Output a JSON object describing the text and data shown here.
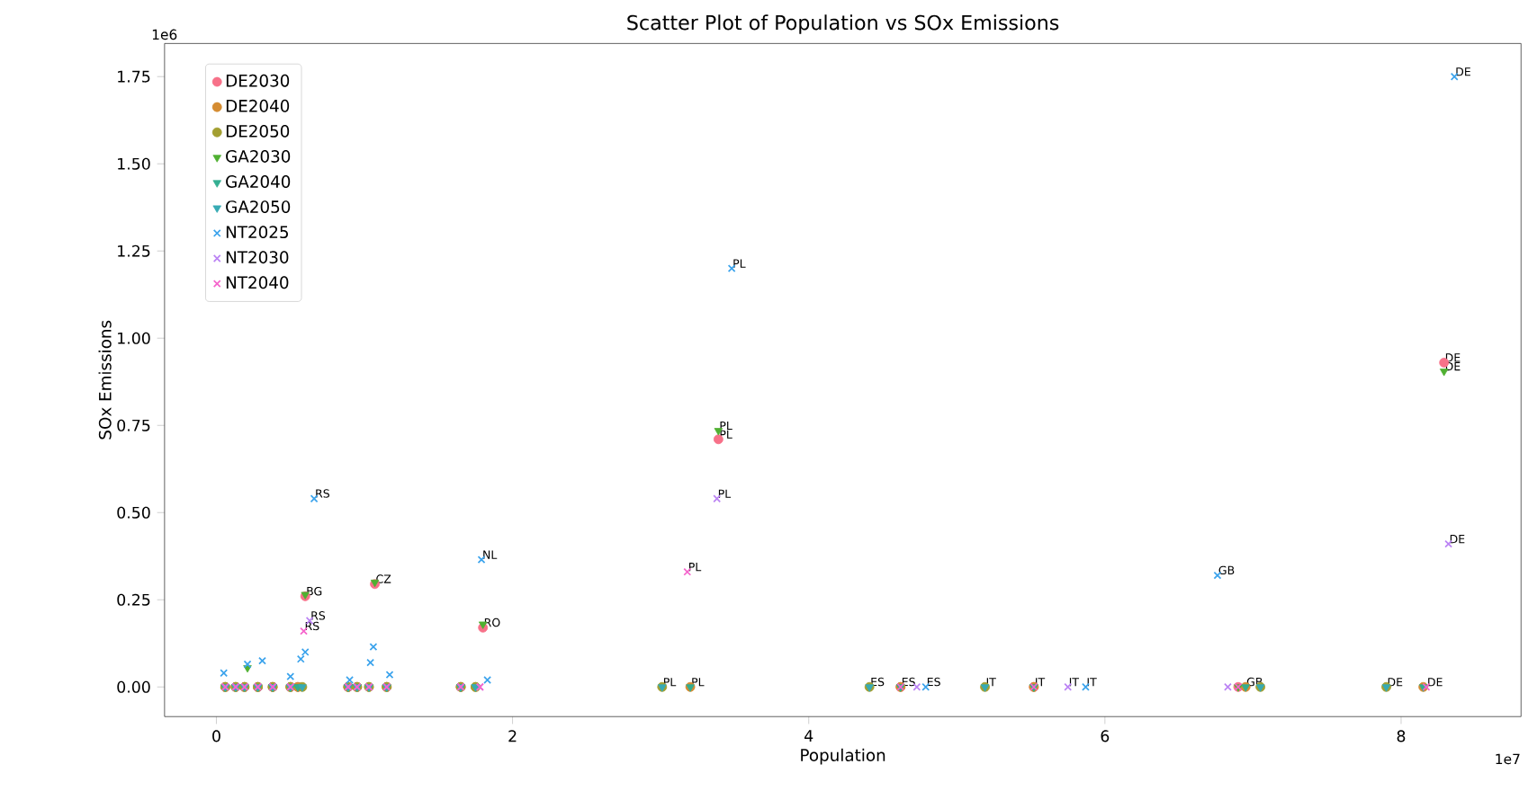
{
  "chart_data": {
    "type": "scatter",
    "title": "Scatter Plot of Population vs SOx Emissions",
    "xlabel": "Population",
    "ylabel": "SOx Emissions",
    "legend": "top left",
    "xlim": [
      -0.35,
      8.81
    ],
    "ylim": [
      -0.085,
      1.845
    ],
    "xticks": [
      0,
      2,
      4,
      6,
      8
    ],
    "yticks": [
      {
        "value": 0,
        "label": "0.00"
      },
      0.25,
      {
        "value": 0.5,
        "label": "0.50"
      },
      0.75,
      {
        "value": 1,
        "label": "1.00"
      },
      1.25,
      {
        "value": 1.5,
        "label": "1.50"
      },
      1.75
    ],
    "series": [
      {
        "name": "DE2030",
        "color": "#f77189",
        "marker": "circle",
        "x": [
          0.06,
          0.13,
          0.19,
          0.28,
          0.38,
          0.5,
          0.55,
          0.6,
          0.89,
          0.95,
          1.07,
          1.15,
          1.65,
          1.8,
          3.39,
          4.62,
          5.52,
          6.9,
          8.29
        ],
        "values": [
          0,
          0,
          0,
          0,
          0,
          0,
          0,
          0.26,
          0,
          0,
          0.295,
          0,
          0,
          0.17,
          0.71,
          0,
          0,
          0,
          0.93
        ]
      },
      {
        "name": "DE2040",
        "color": "#d58c32",
        "marker": "circle",
        "x": [
          0.06,
          0.13,
          0.19,
          0.28,
          0.38,
          0.5,
          0.55,
          0.89,
          0.95,
          1.03,
          1.15,
          1.65,
          1.75,
          3.2,
          4.62,
          5.52,
          6.95,
          8.15
        ],
        "values": [
          0,
          0,
          0,
          0,
          0,
          0,
          0,
          0,
          0,
          0,
          0,
          0,
          0,
          0,
          0,
          0,
          0,
          0
        ]
      },
      {
        "name": "DE2050",
        "color": "#a39f31",
        "marker": "circle",
        "x": [
          0.06,
          0.13,
          0.19,
          0.28,
          0.38,
          0.5,
          0.58,
          0.89,
          0.95,
          1.03,
          1.15,
          1.65,
          1.75,
          3.01,
          4.41,
          5.19,
          7.05,
          7.9
        ],
        "values": [
          0,
          0,
          0,
          0,
          0,
          0,
          0,
          0,
          0,
          0,
          0,
          0,
          0,
          0,
          0,
          0,
          0,
          0
        ]
      },
      {
        "name": "GA2030",
        "color": "#4fb031",
        "marker": "triangle",
        "x": [
          0.06,
          0.13,
          0.21,
          0.28,
          0.38,
          0.5,
          0.55,
          0.6,
          0.89,
          0.95,
          1.07,
          1.15,
          1.65,
          1.8,
          3.39,
          4.62,
          5.52,
          6.9,
          8.29
        ],
        "values": [
          0,
          0,
          0.055,
          0,
          0,
          0,
          0,
          0.265,
          0,
          0,
          0.3,
          0,
          0,
          0.18,
          0.735,
          0,
          0,
          0,
          0.905
        ]
      },
      {
        "name": "GA2040",
        "color": "#34ae91",
        "marker": "triangle",
        "x": [
          0.06,
          0.13,
          0.19,
          0.28,
          0.38,
          0.5,
          0.55,
          0.89,
          0.95,
          1.03,
          1.15,
          1.65,
          1.75,
          3.2,
          4.62,
          5.52,
          6.95,
          8.15
        ],
        "values": [
          0,
          0,
          0,
          0,
          0,
          0,
          0,
          0,
          0,
          0,
          0,
          0,
          0,
          0,
          0,
          0,
          0,
          0
        ]
      },
      {
        "name": "GA2050",
        "color": "#37abb4",
        "marker": "triangle",
        "x": [
          0.06,
          0.13,
          0.19,
          0.28,
          0.38,
          0.5,
          0.58,
          0.89,
          0.95,
          1.03,
          1.15,
          1.65,
          1.75,
          3.01,
          4.41,
          5.19,
          7.05,
          7.9
        ],
        "values": [
          0,
          0,
          0,
          0,
          0,
          0,
          0,
          0,
          0,
          0,
          0,
          0,
          0,
          0,
          0,
          0,
          0,
          0
        ]
      },
      {
        "name": "NT2025",
        "color": "#3ba3ec",
        "marker": "cross",
        "x": [
          0.05,
          0.13,
          0.21,
          0.31,
          0.38,
          0.5,
          0.57,
          0.6,
          0.66,
          0.9,
          1.04,
          1.06,
          1.17,
          1.79,
          1.83,
          3.48,
          4.79,
          5.87,
          6.76,
          8.36
        ],
        "values": [
          0.04,
          0,
          0.065,
          0.075,
          0,
          0.03,
          0.08,
          0.1,
          0.54,
          0.02,
          0.07,
          0.115,
          0.035,
          0.365,
          0.02,
          1.2,
          0,
          0,
          0.32,
          1.75
        ]
      },
      {
        "name": "NT2030",
        "color": "#bb83f4",
        "marker": "cross",
        "x": [
          0.06,
          0.13,
          0.19,
          0.28,
          0.38,
          0.5,
          0.63,
          0.89,
          0.95,
          1.03,
          1.15,
          1.65,
          1.78,
          3.38,
          4.73,
          5.75,
          6.83,
          8.32
        ],
        "values": [
          0,
          0,
          0,
          0,
          0,
          0,
          0.19,
          0,
          0,
          0,
          0,
          0,
          0,
          0.54,
          0,
          0,
          0,
          0.41
        ]
      },
      {
        "name": "NT2040",
        "color": "#f565cc",
        "marker": "cross",
        "x": [
          0.06,
          0.13,
          0.19,
          0.28,
          0.38,
          0.5,
          0.59,
          0.89,
          0.95,
          1.03,
          1.15,
          1.65,
          1.78,
          3.18,
          4.62,
          5.52,
          6.9,
          8.17
        ],
        "values": [
          0,
          0,
          0,
          0,
          0,
          0,
          0.16,
          0,
          0,
          0,
          0,
          0,
          0,
          0.33,
          0,
          0,
          0,
          0
        ]
      }
    ],
    "annotations": [
      "1e6",
      "1e7",
      {
        "text": "DE",
        "x": 8.36,
        "y": 1.75
      },
      {
        "text": "PL",
        "x": 3.48,
        "y": 1.2
      },
      {
        "text": "DE",
        "x": 8.29,
        "y": 0.93
      },
      {
        "text": "DE",
        "x": 8.29,
        "y": 0.905
      },
      {
        "text": "PL",
        "x": 3.39,
        "y": 0.735
      },
      {
        "text": "PL",
        "x": 3.39,
        "y": 0.71
      },
      {
        "text": "RS",
        "x": 0.66,
        "y": 0.54
      },
      {
        "text": "PL",
        "x": 3.38,
        "y": 0.54
      },
      {
        "text": "DE",
        "x": 8.32,
        "y": 0.41
      },
      {
        "text": "NL",
        "x": 1.79,
        "y": 0.365
      },
      {
        "text": "PL",
        "x": 3.18,
        "y": 0.33
      },
      {
        "text": "GB",
        "x": 6.76,
        "y": 0.32
      },
      {
        "text": "CZ",
        "x": 1.07,
        "y": 0.295
      },
      {
        "text": "BG",
        "x": 0.6,
        "y": 0.26
      },
      {
        "text": "RS",
        "x": 0.63,
        "y": 0.19
      },
      {
        "text": "RS",
        "x": 0.59,
        "y": 0.16
      },
      {
        "text": "RO",
        "x": 1.8,
        "y": 0.17
      },
      {
        "text": "PL",
        "x": 3.01,
        "y": 0
      },
      {
        "text": "PL",
        "x": 3.2,
        "y": 0
      },
      {
        "text": "ES",
        "x": 4.41,
        "y": 0
      },
      {
        "text": "ES",
        "x": 4.62,
        "y": 0
      },
      {
        "text": "ES",
        "x": 4.79,
        "y": 0
      },
      {
        "text": "IT",
        "x": 5.19,
        "y": 0
      },
      {
        "text": "IT",
        "x": 5.52,
        "y": 0
      },
      {
        "text": "IT",
        "x": 5.75,
        "y": 0
      },
      {
        "text": "IT",
        "x": 5.87,
        "y": 0
      },
      {
        "text": "GB",
        "x": 6.95,
        "y": 0
      },
      {
        "text": "DE",
        "x": 7.9,
        "y": 0
      },
      {
        "text": "DE",
        "x": 8.17,
        "y": 0
      }
    ]
  }
}
